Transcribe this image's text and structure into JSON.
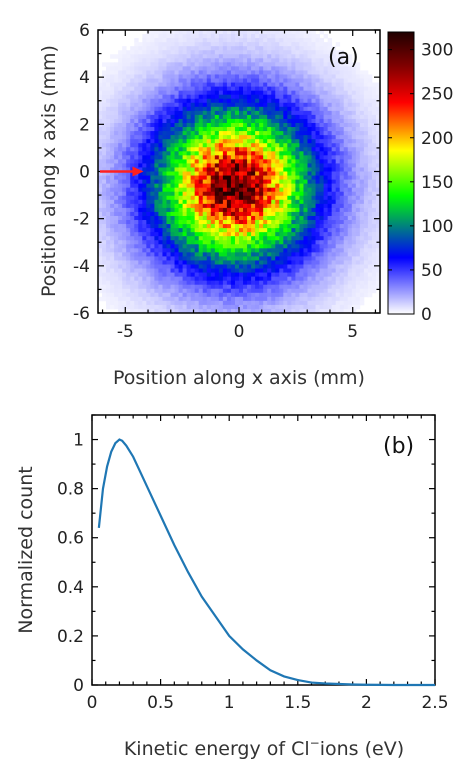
{
  "chart_data": [
    {
      "type": "heatmap",
      "panel_label": "(a)",
      "xlabel": "Position along x axis (mm)",
      "ylabel": "Position along x axis (mm)",
      "xlim": [
        -6.2,
        6.2
      ],
      "ylim": [
        -6,
        6
      ],
      "xticks": [
        -5,
        0,
        5
      ],
      "yticks": [
        -6,
        -4,
        -2,
        0,
        2,
        4,
        6
      ],
      "distribution": {
        "center_x": -0.2,
        "center_y": -0.6,
        "sigma_x": 2.1,
        "sigma_y": 2.0,
        "peak_count": 300
      },
      "colorbar": {
        "min": 0,
        "max": 320,
        "ticks": [
          0,
          50,
          100,
          150,
          200,
          250,
          300
        ],
        "colors": [
          "#ffffff",
          "#0000ff",
          "#00ff00",
          "#ffff00",
          "#ff0000",
          "#800000",
          "#200000"
        ]
      },
      "annotations": [
        {
          "type": "arrow",
          "color": "#ff2020",
          "from_x": -6.2,
          "to_x": -4.2,
          "y": 0
        }
      ]
    },
    {
      "type": "line",
      "panel_label": "(b)",
      "xlabel_prefix": "Kinetic energy of Cl",
      "xlabel_sup": "−",
      "xlabel_suffix": "ions (eV)",
      "ylabel": "Normalized count",
      "xlim": [
        0,
        2.5
      ],
      "ylim": [
        0,
        1.1
      ],
      "xticks": [
        0,
        0.5,
        1,
        1.5,
        2,
        2.5
      ],
      "xtick_labels": [
        "0",
        "0.5",
        "1",
        "1.5",
        "2",
        "2.5"
      ],
      "yticks": [
        0,
        0.2,
        0.4,
        0.6,
        0.8,
        1
      ],
      "ytick_labels": [
        "0",
        "0.2",
        "0.4",
        "0.6",
        "0.8",
        "1"
      ],
      "series": [
        {
          "color": "#1f77b4",
          "x": [
            0.05,
            0.08,
            0.11,
            0.14,
            0.17,
            0.2,
            0.22,
            0.25,
            0.3,
            0.35,
            0.4,
            0.5,
            0.6,
            0.7,
            0.8,
            0.9,
            1.0,
            1.1,
            1.2,
            1.3,
            1.4,
            1.5,
            1.6,
            1.7,
            1.8,
            1.9,
            2.0,
            2.2,
            2.5
          ],
          "y": [
            0.64,
            0.8,
            0.89,
            0.95,
            0.985,
            1.0,
            0.995,
            0.975,
            0.93,
            0.87,
            0.81,
            0.69,
            0.57,
            0.46,
            0.36,
            0.28,
            0.2,
            0.145,
            0.1,
            0.06,
            0.035,
            0.02,
            0.01,
            0.006,
            0.004,
            0.002,
            0.001,
            0.0,
            0.0
          ]
        }
      ]
    }
  ]
}
